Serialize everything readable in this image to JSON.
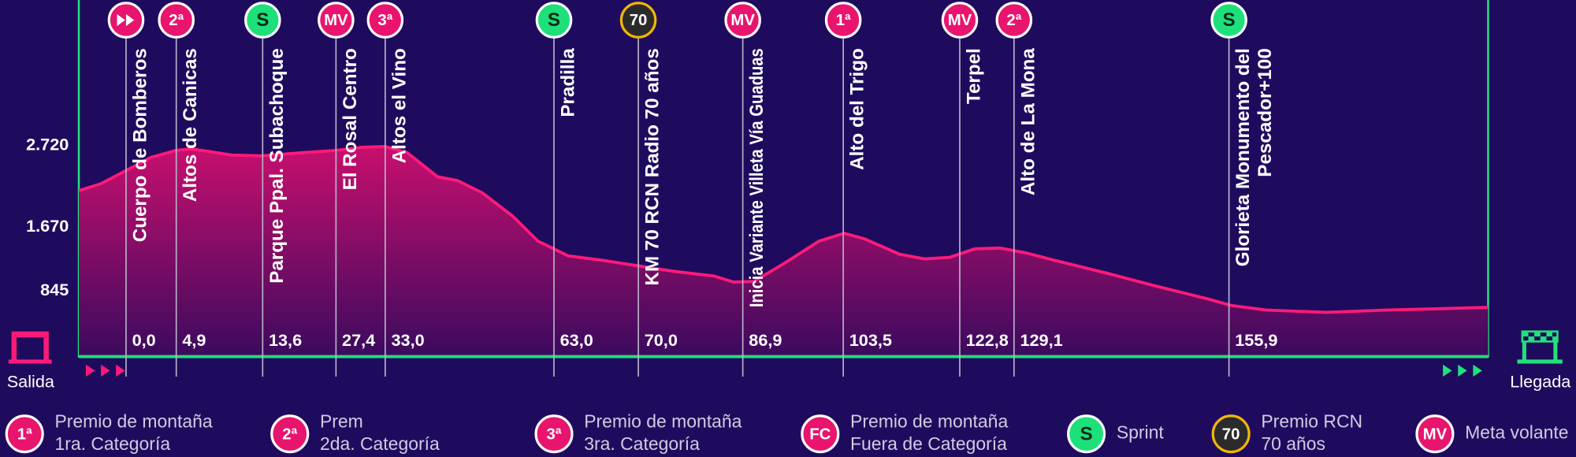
{
  "chart_data": {
    "type": "area",
    "color": "#ff1a7a",
    "ylim": [
      0,
      4600
    ],
    "yticks": [
      {
        "value": 2720,
        "label": "2.720"
      },
      {
        "value": 1670,
        "label": "1.670"
      },
      {
        "value": 845,
        "label": "845"
      }
    ],
    "values": [
      2140,
      2230,
      2400,
      2570,
      2660,
      2680,
      2600,
      2590,
      2630,
      2660,
      2700,
      2710,
      2630,
      2320,
      2270,
      2110,
      1810,
      1490,
      1300,
      1240,
      1170,
      1100,
      1040,
      960,
      970,
      1200,
      1490,
      1590,
      1520,
      1320,
      1260,
      1280,
      1390,
      1400,
      1340,
      1240,
      1080,
      910,
      750,
      660,
      600,
      570,
      600,
      620,
      635
    ]
  },
  "markers": [
    {
      "color": "#e8146e",
      "name": [
        "Cuerpo de Bomberos"
      ],
      "km": "0,0"
    },
    {
      "icon": "2ª",
      "color": "#e8146e",
      "name": [
        "Altos de Canicas"
      ],
      "km": "4,9"
    },
    {
      "icon": "S",
      "color": "#1ee07a",
      "name": [
        "Parque Ppal. Subachoque"
      ],
      "km": "13,6"
    },
    {
      "icon": "MV",
      "color": "#e8146e",
      "name": [
        "El Rosal Centro"
      ],
      "km": "27,4"
    },
    {
      "icon": "3ª",
      "color": "#e8146e",
      "name": [
        "Altos el Vino"
      ],
      "km": "33,0"
    },
    {
      "icon": "S",
      "color": "#1ee07a",
      "name": [
        "Pradilla"
      ],
      "km": "63,0"
    },
    {
      "icon": "70",
      "color": "#2b2b2b",
      "name": [
        "KM 70 RCN Radio 70 años"
      ],
      "km": "70,0"
    },
    {
      "icon": "MV",
      "color": "#e8146e",
      "name": [
        "Inicia Variante Villeta Vía Guaduas"
      ],
      "km": "86,9"
    },
    {
      "icon": "1ª",
      "color": "#e8146e",
      "name": [
        "Alto del Trigo"
      ],
      "km": "103,5"
    },
    {
      "icon": "MV",
      "color": "#e8146e",
      "name": [
        "Terpel"
      ],
      "km": "122,8"
    },
    {
      "icon": "2ª",
      "color": "#e8146e",
      "name": [
        "Alto de La Mona"
      ],
      "km": "129,1"
    },
    {
      "icon": "S",
      "color": "#1ee07a",
      "name": [
        "Glorieta Monumento del",
        "Pescador+100"
      ],
      "km": "155,9"
    }
  ],
  "start_label": "Salida",
  "finish_label": "Llegada",
  "legend": [
    {
      "icon": "1ª",
      "color": "#e8146e",
      "lines": [
        "Premio de montaña",
        "1ra. Categoría"
      ]
    },
    {
      "icon": "2ª",
      "color": "#e8146e",
      "lines": [
        "Prem",
        "2da. Categoría"
      ]
    },
    {
      "icon": "3ª",
      "color": "#e8146e",
      "lines": [
        "Premio de montaña",
        "3ra. Categoría"
      ]
    },
    {
      "icon": "FC",
      "color": "#e8146e",
      "lines": [
        "Premio de montaña",
        "Fuera de Categoría"
      ]
    },
    {
      "icon": "S",
      "color": "#1ee07a",
      "lines": [
        "Sprint"
      ]
    },
    {
      "icon": "70",
      "color": "#2b2b2b",
      "lines": [
        "Premio RCN",
        "70 años"
      ]
    },
    {
      "icon": "MV",
      "color": "#e8146e",
      "lines": [
        "Meta volante"
      ]
    }
  ]
}
